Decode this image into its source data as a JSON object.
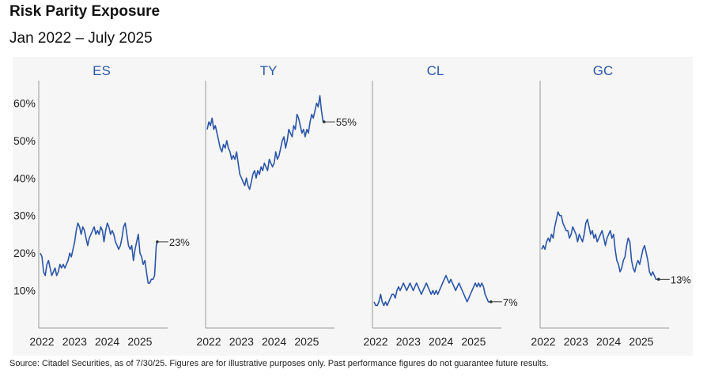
{
  "header": {
    "title": "Risk Parity Exposure",
    "subtitle": "Jan 2022 – July 2025"
  },
  "footer": {
    "source": "Source: Citadel Securities, as of 7/30/25. Figures are for illustrative purposes only. Past performance figures do not guarantee future results."
  },
  "colors": {
    "line": "#2b56a8",
    "title": "#2a57a8",
    "axis": "#999999"
  },
  "chart_data": {
    "type": "line",
    "y_tick_labels": [
      "60%",
      "50%",
      "40%",
      "30%",
      "20%",
      "10%"
    ],
    "y_ticks": [
      60,
      50,
      40,
      30,
      20,
      10
    ],
    "ylim": [
      0,
      66
    ],
    "x_tick_labels": [
      "2022",
      "2023",
      "2024",
      "2025"
    ],
    "x_ticks": [
      2022,
      2023,
      2024,
      2025
    ],
    "xlim": [
      2022,
      2025.85
    ],
    "grid": false,
    "panels": [
      {
        "title": "ES",
        "end_label": "23%",
        "end_value": 23,
        "x": [
          2022.0,
          2022.05,
          2022.1,
          2022.15,
          2022.2,
          2022.25,
          2022.3,
          2022.35,
          2022.4,
          2022.45,
          2022.5,
          2022.55,
          2022.6,
          2022.65,
          2022.7,
          2022.75,
          2022.8,
          2022.85,
          2022.9,
          2022.95,
          2023.0,
          2023.05,
          2023.1,
          2023.15,
          2023.2,
          2023.25,
          2023.3,
          2023.35,
          2023.4,
          2023.45,
          2023.5,
          2023.55,
          2023.6,
          2023.65,
          2023.7,
          2023.75,
          2023.8,
          2023.85,
          2023.9,
          2023.95,
          2024.0,
          2024.05,
          2024.1,
          2024.15,
          2024.2,
          2024.25,
          2024.3,
          2024.35,
          2024.4,
          2024.45,
          2024.5,
          2024.55,
          2024.6,
          2024.65,
          2024.7,
          2024.75,
          2024.8,
          2024.85,
          2024.9,
          2024.95,
          2025.0,
          2025.05,
          2025.1,
          2025.15,
          2025.2,
          2025.25,
          2025.3,
          2025.35,
          2025.4,
          2025.45,
          2025.5,
          2025.55,
          2025.58
        ],
        "y": [
          20,
          19,
          15,
          14,
          17,
          18,
          16,
          14,
          15,
          16,
          14,
          15,
          17,
          16,
          17,
          16,
          17,
          18,
          20,
          19,
          21,
          23,
          26,
          28,
          27,
          25,
          27,
          26,
          24,
          22,
          24,
          25,
          26,
          27,
          25,
          26,
          25,
          27,
          26,
          23,
          26,
          28,
          27,
          25,
          26,
          25,
          23,
          22,
          21,
          22,
          24,
          27,
          28,
          25,
          22,
          21,
          22,
          18,
          21,
          23,
          25,
          20,
          19,
          17,
          18,
          15,
          12,
          12,
          13,
          13,
          14,
          22,
          23
        ]
      },
      {
        "title": "TY",
        "end_label": "55%",
        "end_value": 55,
        "x": [
          2022.0,
          2022.05,
          2022.1,
          2022.15,
          2022.2,
          2022.25,
          2022.3,
          2022.35,
          2022.4,
          2022.45,
          2022.5,
          2022.55,
          2022.6,
          2022.65,
          2022.7,
          2022.75,
          2022.8,
          2022.85,
          2022.9,
          2022.95,
          2023.0,
          2023.05,
          2023.1,
          2023.15,
          2023.2,
          2023.25,
          2023.3,
          2023.35,
          2023.4,
          2023.45,
          2023.5,
          2023.55,
          2023.6,
          2023.65,
          2023.7,
          2023.75,
          2023.8,
          2023.85,
          2023.9,
          2023.95,
          2024.0,
          2024.05,
          2024.1,
          2024.15,
          2024.2,
          2024.25,
          2024.3,
          2024.35,
          2024.4,
          2024.45,
          2024.5,
          2024.55,
          2024.6,
          2024.65,
          2024.7,
          2024.75,
          2024.8,
          2024.85,
          2024.9,
          2024.95,
          2025.0,
          2025.05,
          2025.1,
          2025.15,
          2025.2,
          2025.25,
          2025.3,
          2025.35,
          2025.4,
          2025.45,
          2025.5,
          2025.55,
          2025.58
        ],
        "y": [
          53,
          55,
          54,
          56,
          53,
          54,
          52,
          50,
          48,
          47,
          49,
          48,
          50,
          48,
          47,
          45,
          46,
          45,
          47,
          44,
          41,
          40,
          39,
          38,
          40,
          38,
          37,
          39,
          41,
          42,
          40,
          42,
          41,
          43,
          42,
          44,
          43,
          42,
          45,
          44,
          43,
          44,
          47,
          45,
          46,
          48,
          50,
          51,
          48,
          50,
          53,
          52,
          51,
          54,
          53,
          57,
          56,
          54,
          52,
          53,
          51,
          53,
          52,
          55,
          57,
          56,
          58,
          60,
          59,
          62,
          58,
          55,
          55
        ]
      },
      {
        "title": "CL",
        "end_label": "7%",
        "end_value": 7,
        "x": [
          2022.0,
          2022.05,
          2022.1,
          2022.15,
          2022.2,
          2022.25,
          2022.3,
          2022.35,
          2022.4,
          2022.45,
          2022.5,
          2022.55,
          2022.6,
          2022.65,
          2022.7,
          2022.75,
          2022.8,
          2022.85,
          2022.9,
          2022.95,
          2023.0,
          2023.05,
          2023.1,
          2023.15,
          2023.2,
          2023.25,
          2023.3,
          2023.35,
          2023.4,
          2023.45,
          2023.5,
          2023.55,
          2023.6,
          2023.65,
          2023.7,
          2023.75,
          2023.8,
          2023.85,
          2023.9,
          2023.95,
          2024.0,
          2024.05,
          2024.1,
          2024.15,
          2024.2,
          2024.25,
          2024.3,
          2024.35,
          2024.4,
          2024.45,
          2024.5,
          2024.55,
          2024.6,
          2024.65,
          2024.7,
          2024.75,
          2024.8,
          2024.85,
          2024.9,
          2024.95,
          2025.0,
          2025.05,
          2025.1,
          2025.15,
          2025.2,
          2025.25,
          2025.3,
          2025.35,
          2025.4,
          2025.45,
          2025.5,
          2025.55,
          2025.58
        ],
        "y": [
          7,
          6,
          6,
          7,
          9,
          7,
          6,
          7,
          6,
          7,
          8,
          9,
          9,
          8,
          10,
          11,
          10,
          11,
          12,
          11,
          10,
          11,
          12,
          11,
          10,
          11,
          12,
          11,
          10,
          9,
          10,
          11,
          12,
          11,
          10,
          9,
          10,
          9,
          10,
          9,
          10,
          11,
          12,
          13,
          14,
          13,
          12,
          13,
          12,
          11,
          10,
          11,
          12,
          11,
          10,
          9,
          8,
          7,
          8,
          9,
          10,
          11,
          12,
          11,
          12,
          11,
          12,
          11,
          9,
          8,
          7,
          7,
          7
        ]
      },
      {
        "title": "GC",
        "end_label": "13%",
        "end_value": 13,
        "x": [
          2022.0,
          2022.05,
          2022.1,
          2022.15,
          2022.2,
          2022.25,
          2022.3,
          2022.35,
          2022.4,
          2022.45,
          2022.5,
          2022.55,
          2022.6,
          2022.65,
          2022.7,
          2022.75,
          2022.8,
          2022.85,
          2022.9,
          2022.95,
          2023.0,
          2023.05,
          2023.1,
          2023.15,
          2023.2,
          2023.25,
          2023.3,
          2023.35,
          2023.4,
          2023.45,
          2023.5,
          2023.55,
          2023.6,
          2023.65,
          2023.7,
          2023.75,
          2023.8,
          2023.85,
          2023.9,
          2023.95,
          2024.0,
          2024.05,
          2024.1,
          2024.15,
          2024.2,
          2024.25,
          2024.3,
          2024.35,
          2024.4,
          2024.45,
          2024.5,
          2024.55,
          2024.6,
          2024.65,
          2024.7,
          2024.75,
          2024.8,
          2024.85,
          2024.9,
          2024.95,
          2025.0,
          2025.05,
          2025.1,
          2025.15,
          2025.2,
          2025.25,
          2025.3,
          2025.35,
          2025.4,
          2025.45,
          2025.5,
          2025.55,
          2025.58
        ],
        "y": [
          21,
          22,
          21,
          23,
          24,
          23,
          25,
          24,
          27,
          29,
          31,
          30,
          30,
          28,
          27,
          26,
          26,
          24,
          25,
          27,
          26,
          25,
          23,
          25,
          24,
          23,
          25,
          28,
          29,
          27,
          25,
          26,
          24,
          25,
          23,
          24,
          25,
          26,
          24,
          22,
          24,
          25,
          26,
          24,
          25,
          21,
          18,
          17,
          15,
          16,
          18,
          19,
          22,
          24,
          23,
          18,
          16,
          15,
          17,
          18,
          17,
          19,
          21,
          22,
          20,
          18,
          15,
          14,
          15,
          14,
          13,
          13,
          13
        ]
      }
    ]
  }
}
